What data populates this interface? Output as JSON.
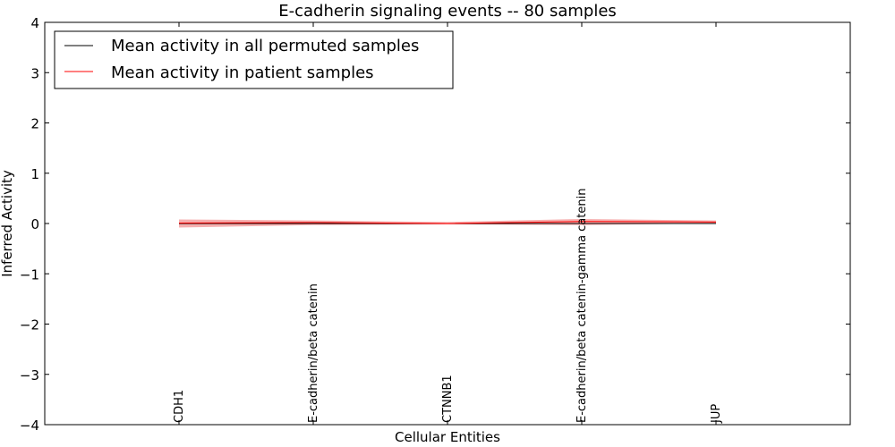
{
  "chart_data": {
    "type": "line",
    "title": "E-cadherin signaling events -- 80 samples",
    "xlabel": "Cellular Entities",
    "ylabel": "Inferred Activity",
    "ylim": [
      -4,
      4
    ],
    "yticks": [
      4,
      3,
      2,
      1,
      0,
      -1,
      -2,
      -3,
      -4
    ],
    "ytick_labels": [
      "4",
      "3",
      "2",
      "1",
      "0",
      "−1",
      "−2",
      "−3",
      "−4"
    ],
    "categories": [
      "CDH1",
      "E-cadherin/beta catenin",
      "CTNNB1",
      "E-cadherin/beta catenin-gamma catenin",
      "JUP"
    ],
    "grid": false,
    "legend_position": "top-left",
    "series": [
      {
        "name": "Mean activity in all permuted samples",
        "color": "#000000",
        "values": [
          0.0,
          0.0,
          0.0,
          0.0,
          0.0
        ]
      },
      {
        "name": "Mean activity in patient samples",
        "color": "#ff0000",
        "values": [
          0.01,
          0.02,
          0.0,
          0.04,
          0.03
        ],
        "band_lower": [
          -0.08,
          -0.03,
          -0.02,
          -0.03,
          0.0
        ],
        "band_upper": [
          0.08,
          0.06,
          0.03,
          0.09,
          0.06
        ],
        "band_color": "#f4a6a6"
      }
    ]
  }
}
